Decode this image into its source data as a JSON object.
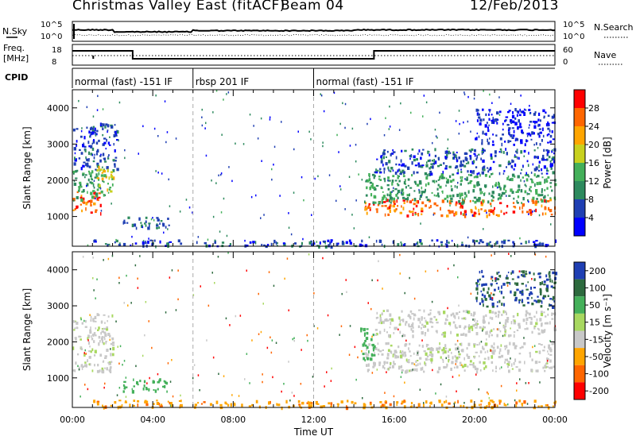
{
  "header": {
    "title": "Christmas Valley East (fitACF)",
    "beam": "Beam 04",
    "date": "12/Feb/2013"
  },
  "nsky_panel": {
    "left_label": "N.Sky",
    "left_ticks": [
      "10^5",
      "10^0"
    ],
    "right_ticks": [
      "10^5",
      "10^0"
    ],
    "right_label": "N.Search"
  },
  "freq_panel": {
    "left_label_1": "Freq.",
    "left_label_2": "[MHz]",
    "left_ticks": [
      "18",
      "8"
    ],
    "right_ticks": [
      "60",
      "0"
    ],
    "right_label": "Nave"
  },
  "cpid_panel": {
    "label": "CPID",
    "segments": [
      {
        "start_h": 0,
        "end_h": 6,
        "label": "normal (fast) -151 IF"
      },
      {
        "start_h": 6,
        "end_h": 12,
        "label": "rbsp 201 IF"
      },
      {
        "start_h": 12,
        "end_h": 24,
        "label": "normal (fast) -151 IF"
      }
    ]
  },
  "chart_data": [
    {
      "name": "power",
      "type": "heatmap",
      "ylabel": "Slant Range [km]",
      "ylim": [
        180,
        4500
      ],
      "yticks": [
        1000,
        2000,
        3000,
        4000
      ],
      "xlim": [
        0,
        24
      ],
      "colorbar": {
        "label": "Power [dB]",
        "ticks": [
          4,
          8,
          12,
          16,
          20,
          24,
          28
        ],
        "levels": [
          {
            "lo": 0,
            "hi": 4,
            "color": "#0000ff"
          },
          {
            "lo": 4,
            "hi": 8,
            "color": "#1f3fb3"
          },
          {
            "lo": 8,
            "hi": 12,
            "color": "#2d8a5e"
          },
          {
            "lo": 12,
            "hi": 16,
            "color": "#44b05a"
          },
          {
            "lo": 16,
            "hi": 20,
            "color": "#c8d11e"
          },
          {
            "lo": 20,
            "hi": 24,
            "color": "#ffa500"
          },
          {
            "lo": 24,
            "hi": 28,
            "color": "#ff6600"
          },
          {
            "lo": 28,
            "hi": 32,
            "color": "#ff0000"
          }
        ]
      },
      "echo_regions": [
        {
          "t0": 0.0,
          "t1": 1.4,
          "r0": 1100,
          "r1": 1700,
          "value": 26
        },
        {
          "t0": 0.0,
          "t1": 1.6,
          "r0": 1500,
          "r1": 2300,
          "value": 12
        },
        {
          "t0": 0.0,
          "t1": 2.2,
          "r0": 2300,
          "r1": 3600,
          "value": 6
        },
        {
          "t0": 1.2,
          "t1": 2.0,
          "r0": 1700,
          "r1": 2400,
          "value": 18
        },
        {
          "t0": 2.5,
          "t1": 4.8,
          "r0": 700,
          "r1": 1000,
          "value": 8
        },
        {
          "t0": 1.0,
          "t1": 24.0,
          "r0": 200,
          "r1": 380,
          "value": 6
        },
        {
          "t0": 14.5,
          "t1": 24.0,
          "r0": 1050,
          "r1": 1500,
          "value": 26
        },
        {
          "t0": 14.5,
          "t1": 24.0,
          "r0": 1400,
          "r1": 2200,
          "value": 12
        },
        {
          "t0": 15.0,
          "t1": 24.0,
          "r0": 2200,
          "r1": 2900,
          "value": 6
        },
        {
          "t0": 20.0,
          "t1": 24.0,
          "r0": 3000,
          "r1": 4000,
          "value": 4
        }
      ]
    },
    {
      "name": "velocity",
      "type": "heatmap",
      "ylabel": "Slant Range [km]",
      "xlabel": "Time UT",
      "ylim": [
        180,
        4500
      ],
      "yticks": [
        1000,
        2000,
        3000,
        4000
      ],
      "xlim": [
        0,
        24
      ],
      "xticks": [
        "00:00",
        "04:00",
        "08:00",
        "12:00",
        "16:00",
        "20:00",
        "00:00"
      ],
      "colorbar": {
        "label": "Velocity [m s⁻¹]",
        "ticks": [
          "200",
          "100",
          "50",
          "15",
          "-15",
          "-50",
          "-100",
          "-200"
        ],
        "colors": [
          "#1f3fb3",
          "#2d6a3e",
          "#44b05a",
          "#a8d860",
          "#c8c8c8",
          "#ffa500",
          "#ff6600",
          "#ff0000"
        ]
      },
      "echo_regions": [
        {
          "t0": 0.0,
          "t1": 2.0,
          "r0": 1200,
          "r1": 2800,
          "vel": 0
        },
        {
          "t0": 2.5,
          "t1": 4.8,
          "r0": 650,
          "r1": 1000,
          "vel": 60
        },
        {
          "t0": 1.0,
          "t1": 24.0,
          "r0": 200,
          "r1": 400,
          "vel": -40
        },
        {
          "t0": 14.5,
          "t1": 24.0,
          "r0": 1200,
          "r1": 2000,
          "vel": 0
        },
        {
          "t0": 15.0,
          "t1": 24.0,
          "r0": 2200,
          "r1": 2900,
          "vel": 0
        },
        {
          "t0": 14.3,
          "t1": 15.0,
          "r0": 1500,
          "r1": 2400,
          "vel": 60
        },
        {
          "t0": 20.0,
          "t1": 24.0,
          "r0": 3000,
          "r1": 4000,
          "vel": 150
        }
      ]
    }
  ]
}
